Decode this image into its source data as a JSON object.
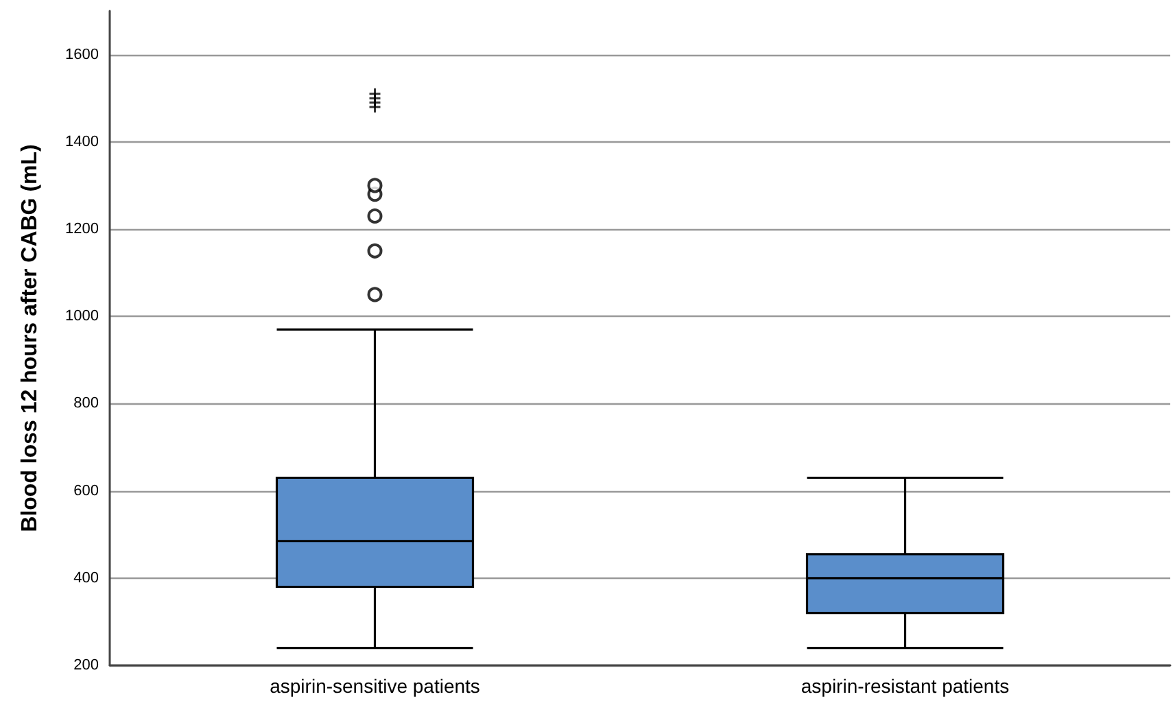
{
  "chart_data": {
    "type": "box",
    "ylabel": "Blood loss 12 hours after CABG (mL)",
    "categories": [
      "aspirin-sensitive patients",
      "aspirin-resistant patients"
    ],
    "series": [
      {
        "color": "#5a8ecb",
        "boxes": [
          {
            "low": 240,
            "q1": 380,
            "median": 485,
            "q3": 630,
            "high": 970,
            "outliers": [
              1050,
              1150,
              1230,
              1280,
              1300
            ]
          },
          {
            "low": 240,
            "q1": 320,
            "median": 400,
            "q3": 455,
            "high": 630
          }
        ]
      },
      {
        "type": "scatter",
        "color": "#000000",
        "marker": "cross",
        "x": [
          "aspirin-sensitive patients",
          "aspirin-sensitive patients",
          "aspirin-sensitive patients",
          "aspirin-sensitive patients"
        ],
        "values": [
          1480,
          1490,
          1500,
          1510
        ]
      }
    ],
    "ylim": [
      200,
      1700
    ],
    "yticks": [
      200,
      400,
      600,
      800,
      1000,
      1200,
      1400,
      1600
    ],
    "grid": "y"
  }
}
